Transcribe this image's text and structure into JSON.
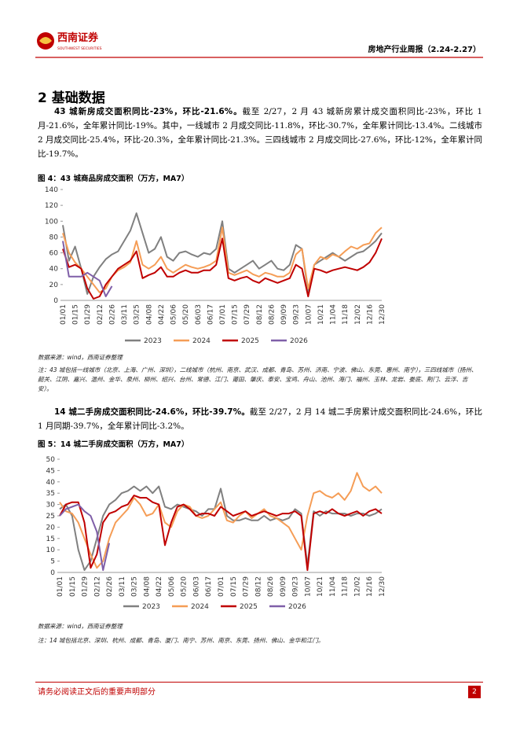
{
  "header": {
    "brand": "西南证券",
    "brand_en": "SOUTHWEST SECURITIES",
    "report": "房地产行业周报（2.24-2.27）"
  },
  "section_title": "2 基础数据",
  "paragraphs": [
    {
      "bold": "43 城新房成交面积同比-23%，环比-21.6%。",
      "text": "截至 2/27，2 月 43 城新房累计成交面积同比-23%，环比 1 月-21.6%，全年累计同比-19%。其中，一线城市 2 月成交同比-11.8%，环比-30.7%，全年累计同比-13.4%。二线城市 2 月成交同比-25.4%，环比-20.3%，全年累计同比-21.3%。三四线城市 2 月成交同比-27.6%，环比-12%，全年累计同比-19.7%。"
    },
    {
      "bold": "14 城二手房成交面积同比-24.6%，环比-39.7%。",
      "text": "截至 2/27，2 月 14 城二手房累计成交面积同比-24.6%，环比 1 月同期-39.7%，全年累计同比-3.2%。"
    }
  ],
  "chart_data": [
    {
      "type": "line",
      "title": "图 4：43 城商品房成交面积（万方，MA7）",
      "categories": [
        "01/01",
        null,
        "01/15",
        null,
        "01/29",
        null,
        "02/12",
        null,
        "02/26",
        null,
        "03/11",
        null,
        "03/25",
        null,
        "04/08",
        null,
        "04/22",
        null,
        "05/06",
        null,
        "05/20",
        null,
        "06/03",
        null,
        "06/17",
        null,
        "07/01",
        null,
        "07/15",
        null,
        "07/29",
        null,
        "08/12",
        null,
        "08/26",
        null,
        "09/09",
        null,
        "09/23",
        null,
        "10/07",
        null,
        "10/21",
        null,
        "11/04",
        null,
        "11/18",
        null,
        "12/02",
        null,
        "12/16",
        null,
        "12/30"
      ],
      "series": [
        {
          "name": "2023",
          "color": "#808080",
          "values": [
            95,
            50,
            68,
            40,
            8,
            30,
            42,
            52,
            58,
            62,
            75,
            88,
            110,
            85,
            60,
            65,
            80,
            55,
            50,
            60,
            62,
            58,
            55,
            60,
            58,
            65,
            100,
            40,
            35,
            40,
            45,
            50,
            40,
            45,
            50,
            40,
            38,
            45,
            70,
            65,
            10,
            45,
            50,
            55,
            60,
            55,
            50,
            55,
            60,
            62,
            68,
            75,
            85
          ]
        },
        {
          "name": "2024",
          "color": "#f59d56",
          "values": [
            85,
            60,
            48,
            40,
            30,
            20,
            10,
            15,
            30,
            38,
            42,
            48,
            75,
            45,
            40,
            45,
            55,
            40,
            35,
            40,
            45,
            42,
            40,
            42,
            45,
            50,
            92,
            35,
            32,
            35,
            38,
            33,
            30,
            35,
            33,
            30,
            30,
            35,
            58,
            65,
            15,
            45,
            55,
            52,
            58,
            55,
            62,
            68,
            65,
            70,
            72,
            85,
            92
          ]
        },
        {
          "name": "2025",
          "color": "#c00000",
          "values": [
            65,
            42,
            45,
            40,
            15,
            2,
            5,
            20,
            30,
            40,
            45,
            50,
            62,
            28,
            32,
            35,
            42,
            30,
            30,
            35,
            38,
            35,
            35,
            38,
            38,
            45,
            78,
            28,
            25,
            28,
            30,
            25,
            22,
            28,
            25,
            22,
            25,
            28,
            45,
            40,
            5,
            40,
            38,
            35,
            38,
            40,
            42,
            40,
            38,
            42,
            48,
            60,
            78
          ]
        },
        {
          "name": "2026",
          "color": "#7f5fa8",
          "values": [
            75,
            30,
            30,
            30,
            35,
            30,
            25,
            5,
            18,
            null,
            null,
            null,
            null,
            null,
            null,
            null,
            null,
            null,
            null,
            null,
            null,
            null,
            null,
            null,
            null,
            null,
            null,
            null,
            null,
            null,
            null,
            null,
            null,
            null,
            null,
            null,
            null,
            null,
            null,
            null,
            null,
            null,
            null,
            null,
            null,
            null,
            null,
            null,
            null,
            null,
            null,
            null,
            null
          ]
        }
      ],
      "ylim": [
        0,
        140
      ],
      "yticks": [
        0,
        20,
        40,
        60,
        80,
        100,
        120,
        140
      ],
      "grid": false,
      "legend": "bottom",
      "source": "数据来源：wind，西南证券整理",
      "note": "注：43 城包括一线城市（北京、上海、广州、深圳），二线城市（杭州、南京、武汉、成都、青岛、苏州、济南、宁波、佛山、东莞、惠州、南宁），三四线城市（扬州、韶关、江阴、嘉兴、温州、金华、泉州、柳州、绍兴、台州、常德、江门、莆田、肇庆、泰安、宝鸡、舟山、池州、海门、福州、玉林、龙岩、娄底、荆门、云浮、吉安）。"
    },
    {
      "type": "line",
      "title": "图 5：14 城二手房成交面积（万方，MA7）",
      "categories": [
        "01/01",
        null,
        "01/15",
        null,
        "01/29",
        null,
        "02/12",
        null,
        "02/26",
        null,
        "03/11",
        null,
        "03/25",
        null,
        "04/08",
        null,
        "04/22",
        null,
        "05/06",
        null,
        "05/20",
        null,
        "06/03",
        null,
        "06/17",
        null,
        "07/01",
        null,
        "07/15",
        null,
        "07/29",
        null,
        "08/12",
        null,
        "08/26",
        null,
        "09/09",
        null,
        "09/23",
        null,
        "10/07",
        null,
        "10/21",
        null,
        "11/04",
        null,
        "11/18",
        null,
        "12/02",
        null,
        "12/16",
        null,
        "12/30"
      ],
      "series": [
        {
          "name": "2023",
          "color": "#808080",
          "values": [
            28,
            30,
            25,
            10,
            1,
            5,
            15,
            25,
            30,
            32,
            35,
            36,
            38,
            36,
            38,
            35,
            38,
            29,
            28,
            30,
            29,
            28,
            27,
            25,
            28,
            28,
            37,
            25,
            23,
            23,
            24,
            23,
            23,
            25,
            23,
            24,
            23,
            24,
            28,
            26,
            3,
            27,
            25,
            27,
            26,
            26,
            26,
            25,
            26,
            26,
            25,
            26,
            28
          ]
        },
        {
          "name": "2024",
          "color": "#f59d56",
          "values": [
            31,
            27,
            26,
            22,
            15,
            8,
            2,
            5,
            15,
            22,
            25,
            28,
            33,
            30,
            25,
            26,
            30,
            22,
            20,
            27,
            30,
            29,
            25,
            24,
            25,
            28,
            31,
            23,
            22,
            25,
            27,
            24,
            26,
            28,
            25,
            24,
            22,
            20,
            15,
            10,
            25,
            35,
            36,
            34,
            33,
            35,
            32,
            36,
            44,
            38,
            36,
            38,
            35
          ]
        },
        {
          "name": "2025",
          "color": "#c00000",
          "values": [
            25,
            30,
            31,
            31,
            22,
            2,
            8,
            22,
            26,
            27,
            29,
            30,
            34,
            33,
            33,
            31,
            30,
            12,
            22,
            29,
            30,
            28,
            25,
            26,
            26,
            25,
            29,
            27,
            25,
            26,
            27,
            25,
            26,
            27,
            26,
            25,
            26,
            26,
            27,
            25,
            1,
            26,
            27,
            26,
            28,
            26,
            25,
            26,
            27,
            25,
            27,
            28,
            26
          ]
        },
        {
          "name": "2026",
          "color": "#7f5fa8",
          "values": [
            25,
            28,
            29,
            30,
            27,
            25,
            18,
            1,
            13,
            null,
            null,
            null,
            null,
            null,
            null,
            null,
            null,
            null,
            null,
            null,
            null,
            null,
            null,
            null,
            null,
            null,
            null,
            null,
            null,
            null,
            null,
            null,
            null,
            null,
            null,
            null,
            null,
            null,
            null,
            null,
            null,
            null,
            null,
            null,
            null,
            null,
            null,
            null,
            null,
            null,
            null,
            null,
            null
          ]
        }
      ],
      "ylim": [
        0,
        50
      ],
      "yticks": [
        0,
        5,
        10,
        15,
        20,
        25,
        30,
        35,
        40,
        45,
        50
      ],
      "grid": false,
      "legend": "bottom",
      "source": "数据来源：wind，西南证券整理",
      "note": "注：14 城包括北京、深圳、杭州、成都、青岛、厦门、南宁、苏州、南京、东莞、扬州、佛山、金华和江门。"
    }
  ],
  "footer": {
    "disclaimer": "请务必阅读正文后的重要声明部分",
    "page": "2"
  }
}
